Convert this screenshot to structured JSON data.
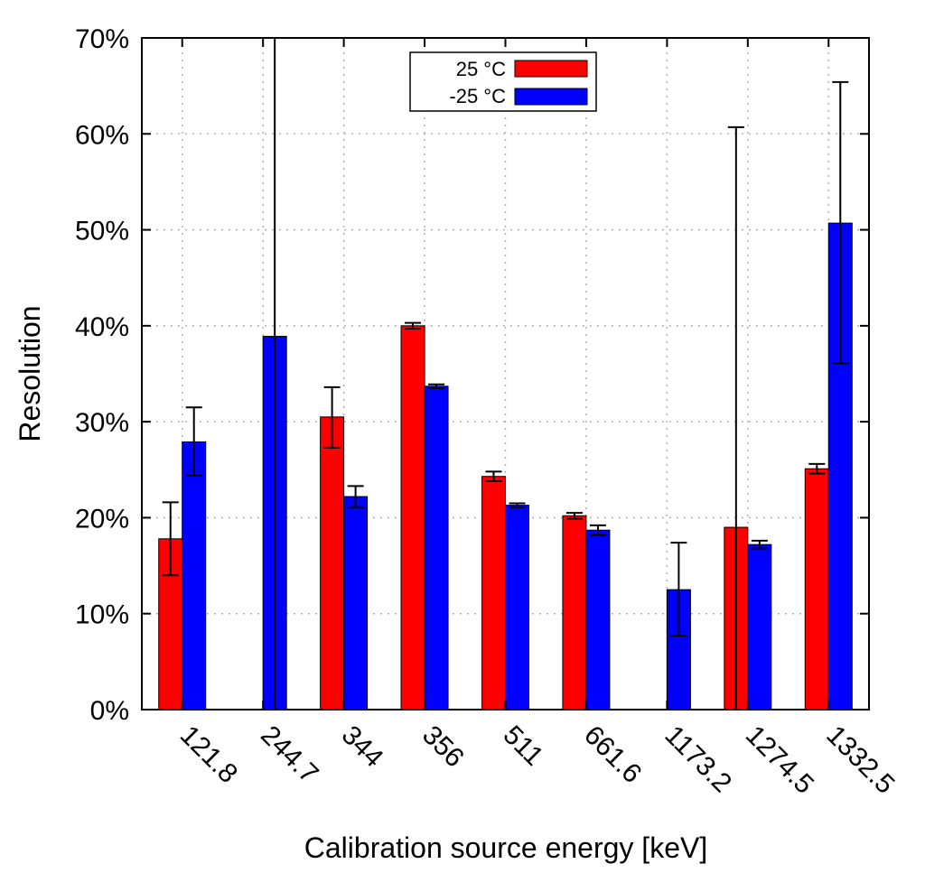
{
  "chart_data": {
    "type": "bar",
    "categories": [
      "121.8",
      "244.7",
      "344",
      "356",
      "511",
      "661.6",
      "1173.2",
      "1274.5",
      "1332.5"
    ],
    "series": [
      {
        "name": "25 °C",
        "color": "#ff0000",
        "values": [
          17.8,
          null,
          30.5,
          40.0,
          24.3,
          20.2,
          null,
          19.0,
          25.1
        ],
        "error_low": [
          14.0,
          null,
          27.3,
          39.7,
          23.8,
          19.9,
          null,
          0.0,
          24.6
        ],
        "error_high": [
          21.6,
          null,
          33.6,
          40.3,
          24.8,
          20.5,
          null,
          60.7,
          25.6
        ]
      },
      {
        "name": "-25 °C",
        "color": "#0000ff",
        "values": [
          27.9,
          38.9,
          22.2,
          33.7,
          21.3,
          18.7,
          12.5,
          17.2,
          50.7
        ],
        "error_low": [
          24.4,
          0.0,
          21.1,
          33.5,
          21.1,
          18.2,
          7.7,
          16.8,
          36.1
        ],
        "error_high": [
          31.5,
          70.0,
          23.3,
          33.9,
          21.5,
          19.2,
          17.4,
          17.6,
          65.4
        ]
      }
    ],
    "title": "",
    "xlabel": "Calibration source energy [keV]",
    "ylabel": "Resolution",
    "ylim": [
      0,
      70
    ],
    "yticks": [
      0,
      10,
      20,
      30,
      40,
      50,
      60,
      70
    ],
    "ytick_format": "%",
    "grid": true,
    "legend_position": "top-center"
  }
}
